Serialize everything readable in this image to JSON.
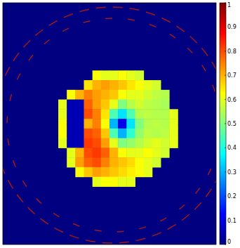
{
  "chart_data": {
    "type": "heatmap",
    "xlim": [
      0,
      100
    ],
    "ylim": [
      100,
      0
    ],
    "tick_labels": false,
    "x": [
      28,
      32,
      36,
      40,
      44,
      48,
      52,
      56,
      60,
      64,
      68,
      72,
      76,
      80
    ],
    "y": [
      30,
      34,
      38,
      42,
      46,
      50,
      54,
      58,
      62,
      66,
      70,
      74
    ],
    "cells": [
      [
        null,
        null,
        null,
        null,
        0.62,
        0.6,
        0.6,
        0.62,
        0.6,
        0.58,
        null,
        null,
        null,
        null
      ],
      [
        null,
        null,
        null,
        0.65,
        0.7,
        0.72,
        0.7,
        0.68,
        0.65,
        0.62,
        0.6,
        0.58,
        null,
        null
      ],
      [
        null,
        0.62,
        0.7,
        0.75,
        0.72,
        0.7,
        0.68,
        0.62,
        0.6,
        0.6,
        0.58,
        0.56,
        0.55,
        null
      ],
      [
        0.6,
        0.05,
        0.05,
        0.78,
        0.72,
        0.68,
        0.6,
        0.5,
        0.55,
        0.58,
        0.56,
        0.55,
        0.54,
        null
      ],
      [
        0.6,
        0.05,
        0.05,
        0.8,
        0.75,
        0.65,
        0.45,
        0.35,
        0.45,
        0.55,
        0.56,
        0.55,
        0.55,
        0.6
      ],
      [
        0.62,
        0.05,
        0.05,
        0.7,
        0.75,
        0.62,
        0.3,
        0.1,
        0.35,
        0.5,
        0.55,
        0.56,
        0.55,
        0.6
      ],
      [
        0.62,
        0.05,
        0.05,
        0.8,
        0.78,
        0.68,
        0.45,
        0.3,
        0.42,
        0.52,
        0.56,
        0.55,
        0.56,
        0.6
      ],
      [
        0.6,
        0.05,
        0.05,
        0.82,
        0.8,
        0.72,
        0.6,
        0.5,
        0.52,
        0.55,
        0.58,
        0.6,
        0.58,
        0.6
      ],
      [
        null,
        0.6,
        0.7,
        0.8,
        0.82,
        0.78,
        0.7,
        0.62,
        0.6,
        0.6,
        0.62,
        0.6,
        0.58,
        null
      ],
      [
        null,
        0.6,
        0.72,
        0.78,
        0.8,
        0.75,
        0.7,
        0.68,
        0.66,
        0.62,
        0.6,
        0.58,
        null,
        null
      ],
      [
        null,
        null,
        0.62,
        0.68,
        0.72,
        0.7,
        0.68,
        0.66,
        0.64,
        0.62,
        0.6,
        null,
        null,
        null
      ],
      [
        null,
        null,
        null,
        null,
        0.6,
        0.62,
        0.62,
        0.6,
        0.6,
        null,
        null,
        null,
        null,
        null
      ]
    ],
    "colorbar": {
      "range": [
        0,
        1
      ],
      "ticks": [
        0,
        0.1,
        0.2,
        0.3,
        0.4,
        0.5,
        0.6,
        0.7,
        0.8,
        0.9,
        1
      ]
    }
  }
}
